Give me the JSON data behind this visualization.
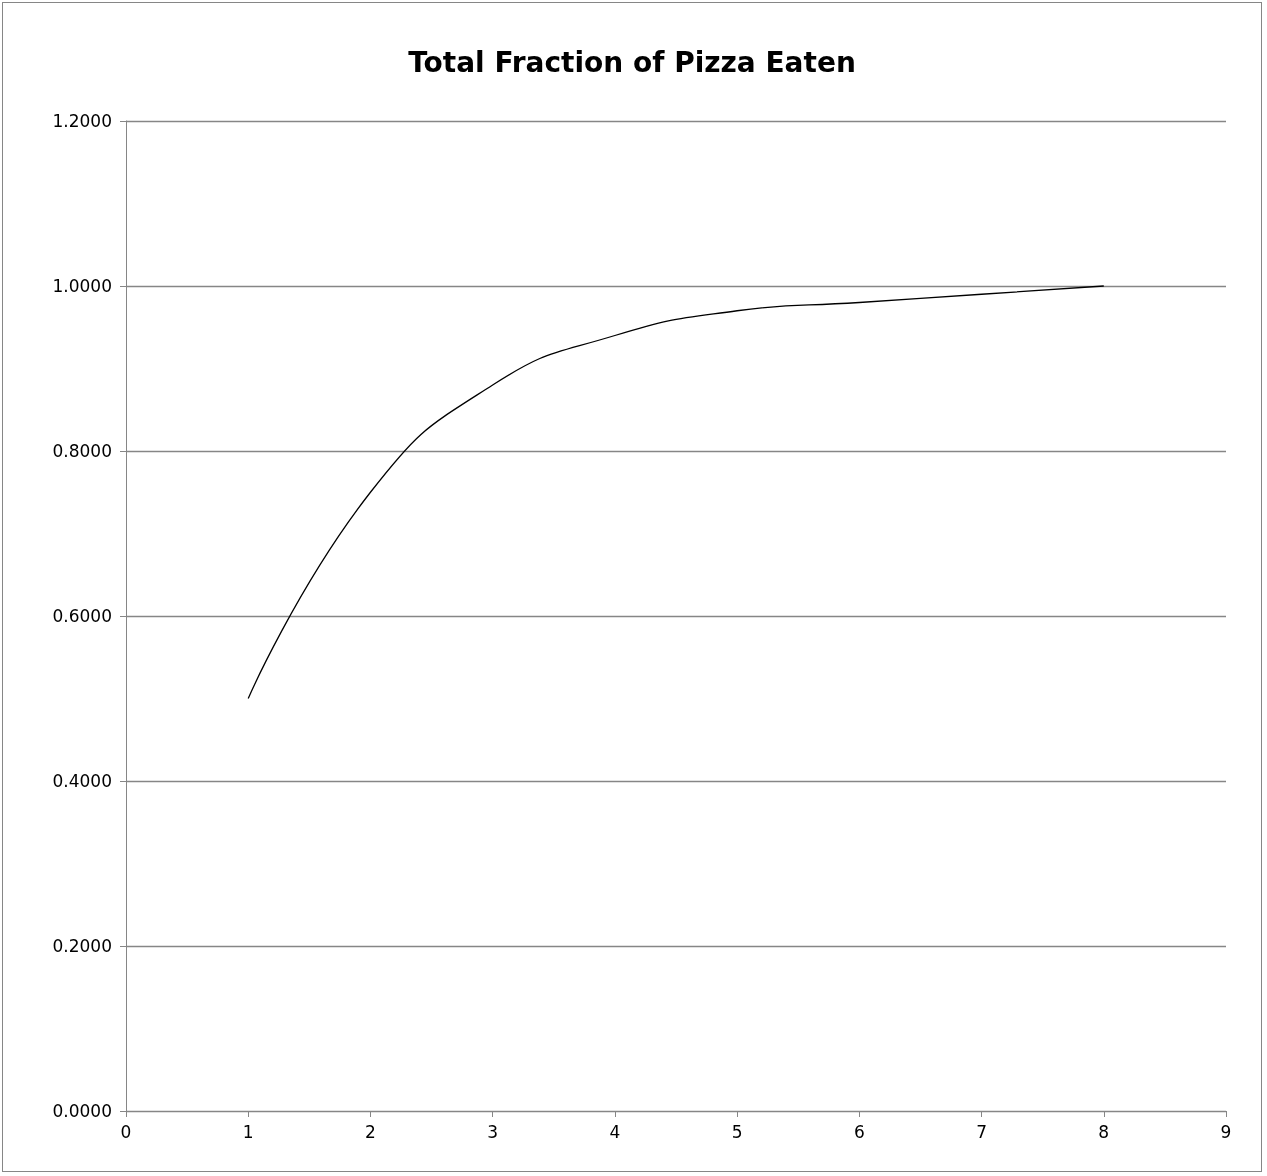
{
  "chart_data": {
    "type": "line",
    "title": "Total Fraction of Pizza Eaten",
    "x": [
      1,
      2,
      3,
      4,
      5,
      6,
      7,
      8
    ],
    "series": [
      {
        "color": "#000000",
        "values": [
          0.5,
          0.75,
          0.88,
          0.94,
          0.97,
          0.98,
          0.99,
          1.0
        ]
      }
    ],
    "xlim": [
      0,
      9
    ],
    "xticks": [
      0,
      1,
      2,
      3,
      4,
      5,
      6,
      7,
      8,
      9
    ],
    "ylim": [
      0,
      1.2
    ],
    "yticks": [
      {
        "value": 0,
        "label": "0.0000"
      },
      {
        "value": 0.2,
        "label": "0.2000"
      },
      {
        "value": 0.4,
        "label": "0.4000"
      },
      {
        "value": 0.6,
        "label": "0.6000"
      },
      {
        "value": 0.8,
        "label": "0.8000"
      },
      {
        "value": 1.0,
        "label": "1.0000"
      },
      {
        "value": 1.2,
        "label": "1.2000"
      }
    ],
    "grid": "y",
    "marker": "none",
    "line_style": "solid"
  }
}
